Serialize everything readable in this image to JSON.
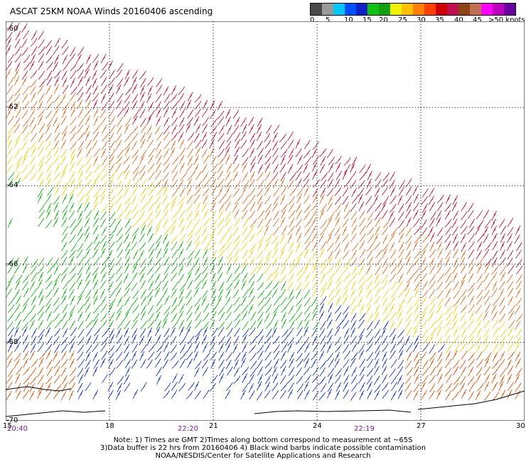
{
  "title": "ASCAT 25KM NOAA Winds 20160406 ascending",
  "legend": {
    "colors": [
      "#4a4a4a",
      "#9a9a9a",
      "#00c8ff",
      "#0050ff",
      "#1020c8",
      "#10c010",
      "#10a010",
      "#f0f000",
      "#ffc000",
      "#ff8000",
      "#ff4000",
      "#d00000",
      "#c01050",
      "#8b4513",
      "#c07050",
      "#ff00ff",
      "#c000c0",
      "#6a00a0"
    ],
    "labels": [
      "0",
      "5",
      "10",
      "15",
      "20",
      "25",
      "30",
      "35",
      "40",
      "45",
      ">50 knots"
    ]
  },
  "lat_labels": [
    "-60",
    "-62",
    "-64",
    "-66",
    "-68",
    "-70"
  ],
  "lon_labels": [
    "15",
    "18",
    "21",
    "24",
    "27",
    "30"
  ],
  "time_labels": [
    "20:40",
    "22:20",
    "22:19"
  ],
  "notes": [
    "Note: 1) Times are GMT 2)Times along bottom correspond to measurement at ~65S",
    "3)Data buffer is 22 hrs from 20160406 4) Black wind barbs indicate possible contamination",
    "NOAA/NESDIS/Center for Satellite Applications and Research"
  ],
  "map": {
    "lon_range": [
      15,
      30
    ],
    "lat_range": [
      -70,
      -59.8
    ],
    "zones": [
      {
        "name": "top-red",
        "color": "#c81e3a"
      },
      {
        "name": "orange",
        "color": "#e8722a"
      },
      {
        "name": "yellow",
        "color": "#f2d21a"
      },
      {
        "name": "green",
        "color": "#18b818"
      },
      {
        "name": "blue",
        "color": "#1a3ad6"
      },
      {
        "name": "south-orange",
        "color": "#e05a10"
      }
    ]
  }
}
